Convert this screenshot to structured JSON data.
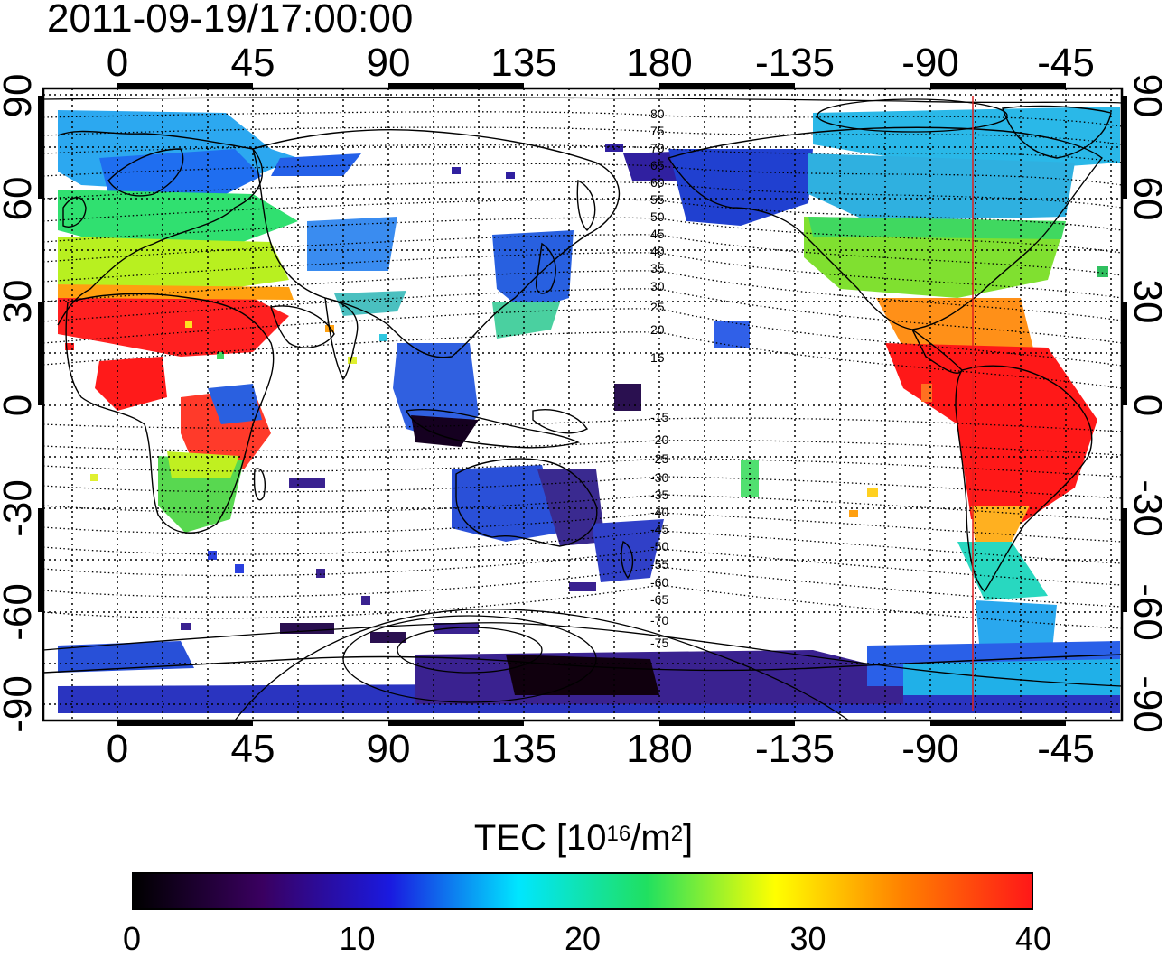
{
  "map": {
    "timestamp": "2011-09-19/17:00:00",
    "top_ticks": [
      "0",
      "45",
      "90",
      "135",
      "180",
      "-135",
      "-90",
      "-45"
    ],
    "bottom_ticks": [
      "0",
      "45",
      "90",
      "135",
      "180",
      "-135",
      "-90",
      "-45"
    ],
    "left_ticks": [
      "90",
      "60",
      "30",
      "0",
      "-30",
      "-60",
      "-90"
    ],
    "right_ticks": [
      "90",
      "60",
      "30",
      "0",
      "-30",
      "-60",
      "-90"
    ],
    "contour_labels_north": [
      "80",
      "75",
      "70",
      "65",
      "60",
      "55",
      "50",
      "45",
      "40",
      "35",
      "30",
      "25",
      "20",
      "15"
    ],
    "contour_labels_south": [
      "-15",
      "-20",
      "-25",
      "-30",
      "-35",
      "-40",
      "-45",
      "-50",
      "-55",
      "-60",
      "-65",
      "-70",
      "-75"
    ],
    "meridian_line_color": "#e02020",
    "frame_color": "#000000"
  },
  "colorbar": {
    "label_main": "TEC  [10",
    "label_exp": "16",
    "label_unit": "/m",
    "label_exp2": "2",
    "label_end": "]",
    "min": 0,
    "max": 40,
    "tick_labels": [
      "0",
      "10",
      "20",
      "30",
      "40"
    ],
    "tick_values": [
      0,
      10,
      20,
      30,
      40
    ],
    "colors": [
      "#000000",
      "#3a0060",
      "#1a1ae0",
      "#00e6ff",
      "#20e060",
      "#ffff00",
      "#ff8000",
      "#ff1818"
    ]
  }
}
